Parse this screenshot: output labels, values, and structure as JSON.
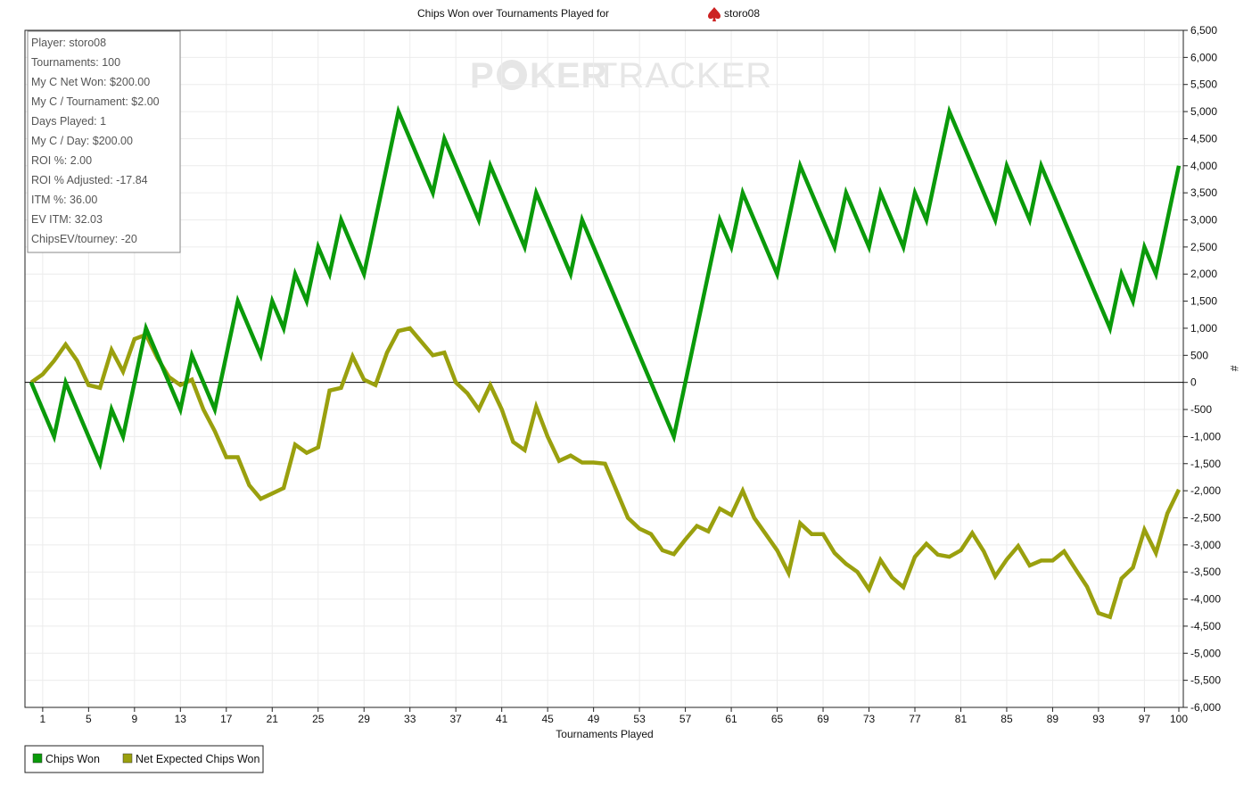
{
  "title": {
    "prefix": "Chips Won over Tournaments Played for",
    "player": "storo08",
    "icon": "spade-icon",
    "icon_color": "#cc2222"
  },
  "watermark": {
    "left": "P",
    "middle": "KER",
    "right": "TRACKER"
  },
  "stats": [
    "Player: storo08",
    "Tournaments: 100",
    "My C Net Won: $200.00",
    "My C / Tournament: $2.00",
    "Days Played: 1",
    "My C / Day: $200.00",
    "ROI %: 2.00",
    "ROI % Adjusted: -17.84",
    "ITM %: 36.00",
    "EV ITM: 32.03",
    "ChipsEV/tourney: -20"
  ],
  "legend": [
    {
      "label": "Chips Won",
      "color": "#0a9a0a"
    },
    {
      "label": "Net Expected Chips Won",
      "color": "#9aa00e"
    }
  ],
  "chart_data": {
    "type": "line",
    "title": "Chips Won over Tournaments Played for storo08",
    "xlabel": "Tournaments Played",
    "ylabel": "#",
    "xlim": [
      0,
      100
    ],
    "ylim": [
      -6000,
      6500
    ],
    "xticks": [
      1,
      5,
      9,
      13,
      17,
      21,
      25,
      29,
      33,
      37,
      41,
      45,
      49,
      53,
      57,
      61,
      65,
      69,
      73,
      77,
      81,
      85,
      89,
      93,
      97,
      100
    ],
    "yticks": [
      -6000,
      -5500,
      -5000,
      -4500,
      -4000,
      -3500,
      -3000,
      -2500,
      -2000,
      -1500,
      -1000,
      -500,
      0,
      500,
      1000,
      1500,
      2000,
      2500,
      3000,
      3500,
      4000,
      4500,
      5000,
      5500,
      6000,
      6500
    ],
    "ytick_labels": [
      "-6,000",
      "-5,500",
      "-5,000",
      "-4,500",
      "-4,000",
      "-3,500",
      "-3,000",
      "-2,500",
      "-2,000",
      "-1,500",
      "-1,000",
      "-500",
      "0",
      "500",
      "1,000",
      "1,500",
      "2,000",
      "2,500",
      "3,000",
      "3,500",
      "4,000",
      "4,500",
      "5,000",
      "5,500",
      "6,000",
      "6,500"
    ],
    "grid": true,
    "legend_position": "bottom-left",
    "series": [
      {
        "name": "Chips Won",
        "color": "#0a9a0a",
        "points": [
          [
            0,
            0
          ],
          [
            2,
            -1000
          ],
          [
            3,
            0
          ],
          [
            6,
            -1500
          ],
          [
            7,
            -500
          ],
          [
            8,
            -1000
          ],
          [
            10,
            1000
          ],
          [
            13,
            -500
          ],
          [
            14,
            500
          ],
          [
            16,
            -500
          ],
          [
            18,
            1500
          ],
          [
            20,
            500
          ],
          [
            21,
            1500
          ],
          [
            22,
            1000
          ],
          [
            23,
            2000
          ],
          [
            24,
            1500
          ],
          [
            25,
            2500
          ],
          [
            26,
            2000
          ],
          [
            27,
            3000
          ],
          [
            29,
            2000
          ],
          [
            32,
            5000
          ],
          [
            35,
            3500
          ],
          [
            36,
            4500
          ],
          [
            39,
            3000
          ],
          [
            40,
            4000
          ],
          [
            43,
            2500
          ],
          [
            44,
            3500
          ],
          [
            47,
            2000
          ],
          [
            48,
            3000
          ],
          [
            56,
            -1000
          ],
          [
            60,
            3000
          ],
          [
            61,
            2500
          ],
          [
            62,
            3500
          ],
          [
            65,
            2000
          ],
          [
            67,
            4000
          ],
          [
            70,
            2500
          ],
          [
            71,
            3500
          ],
          [
            73,
            2500
          ],
          [
            74,
            3500
          ],
          [
            76,
            2500
          ],
          [
            77,
            3500
          ],
          [
            78,
            3000
          ],
          [
            80,
            5000
          ],
          [
            84,
            3000
          ],
          [
            85,
            4000
          ],
          [
            87,
            3000
          ],
          [
            88,
            4000
          ],
          [
            94,
            1000
          ],
          [
            95,
            2000
          ],
          [
            96,
            1500
          ],
          [
            97,
            2500
          ],
          [
            98,
            2000
          ],
          [
            100,
            4000
          ]
        ]
      },
      {
        "name": "Net Expected Chips Won",
        "color": "#9aa00e",
        "points": [
          [
            0,
            0
          ],
          [
            1,
            150
          ],
          [
            2,
            400
          ],
          [
            3,
            700
          ],
          [
            4,
            400
          ],
          [
            5,
            -50
          ],
          [
            6,
            -100
          ],
          [
            7,
            600
          ],
          [
            8,
            200
          ],
          [
            9,
            800
          ],
          [
            10,
            880
          ],
          [
            11,
            450
          ],
          [
            12,
            100
          ],
          [
            13,
            -50
          ],
          [
            14,
            50
          ],
          [
            15,
            -500
          ],
          [
            16,
            -900
          ],
          [
            17,
            -1380
          ],
          [
            18,
            -1380
          ],
          [
            19,
            -1900
          ],
          [
            20,
            -2150
          ],
          [
            21,
            -2050
          ],
          [
            22,
            -1950
          ],
          [
            23,
            -1150
          ],
          [
            24,
            -1300
          ],
          [
            25,
            -1200
          ],
          [
            26,
            -150
          ],
          [
            27,
            -100
          ],
          [
            28,
            480
          ],
          [
            29,
            50
          ],
          [
            30,
            -50
          ],
          [
            31,
            550
          ],
          [
            32,
            950
          ],
          [
            33,
            1000
          ],
          [
            35,
            500
          ],
          [
            36,
            550
          ],
          [
            37,
            0
          ],
          [
            38,
            -200
          ],
          [
            39,
            -500
          ],
          [
            40,
            -50
          ],
          [
            41,
            -500
          ],
          [
            42,
            -1100
          ],
          [
            43,
            -1250
          ],
          [
            44,
            -450
          ],
          [
            45,
            -1000
          ],
          [
            46,
            -1450
          ],
          [
            47,
            -1350
          ],
          [
            48,
            -1480
          ],
          [
            49,
            -1480
          ],
          [
            50,
            -1500
          ],
          [
            51,
            -2000
          ],
          [
            52,
            -2500
          ],
          [
            53,
            -2700
          ],
          [
            54,
            -2800
          ],
          [
            55,
            -3100
          ],
          [
            56,
            -3170
          ],
          [
            57,
            -2900
          ],
          [
            58,
            -2650
          ],
          [
            59,
            -2750
          ],
          [
            60,
            -2330
          ],
          [
            61,
            -2450
          ],
          [
            62,
            -2000
          ],
          [
            63,
            -2500
          ],
          [
            64,
            -2800
          ],
          [
            65,
            -3100
          ],
          [
            66,
            -3520
          ],
          [
            67,
            -2600
          ],
          [
            68,
            -2800
          ],
          [
            69,
            -2800
          ],
          [
            70,
            -3150
          ],
          [
            71,
            -3350
          ],
          [
            72,
            -3500
          ],
          [
            73,
            -3820
          ],
          [
            74,
            -3280
          ],
          [
            75,
            -3600
          ],
          [
            76,
            -3780
          ],
          [
            77,
            -3220
          ],
          [
            78,
            -2980
          ],
          [
            79,
            -3180
          ],
          [
            80,
            -3220
          ],
          [
            81,
            -3100
          ],
          [
            82,
            -2780
          ],
          [
            83,
            -3120
          ],
          [
            84,
            -3580
          ],
          [
            85,
            -3270
          ],
          [
            86,
            -3020
          ],
          [
            87,
            -3380
          ],
          [
            88,
            -3290
          ],
          [
            89,
            -3290
          ],
          [
            90,
            -3120
          ],
          [
            91,
            -3450
          ],
          [
            92,
            -3770
          ],
          [
            93,
            -4260
          ],
          [
            94,
            -4330
          ],
          [
            95,
            -3620
          ],
          [
            96,
            -3420
          ],
          [
            97,
            -2720
          ],
          [
            98,
            -3150
          ],
          [
            99,
            -2420
          ],
          [
            100,
            -1980
          ]
        ]
      }
    ]
  }
}
